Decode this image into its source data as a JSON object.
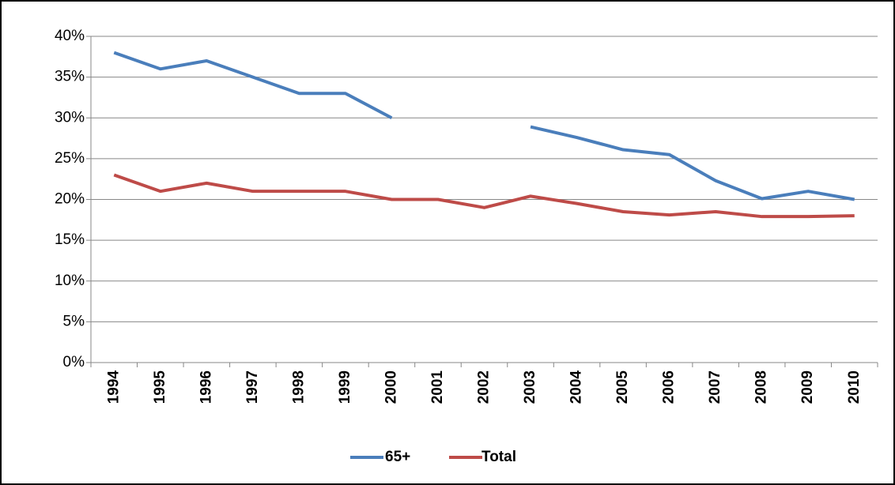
{
  "chart_data": {
    "type": "line",
    "categories": [
      "1994",
      "1995",
      "1996",
      "1997",
      "1998",
      "1999",
      "2000",
      "2001",
      "2002",
      "2003",
      "2004",
      "2005",
      "2006",
      "2007",
      "2008",
      "2009",
      "2010"
    ],
    "series": [
      {
        "name": "65+",
        "color": "#4a7ebb",
        "values": [
          38,
          36,
          37,
          35,
          33,
          33,
          30,
          null,
          null,
          28.9,
          27.6,
          26.1,
          25.5,
          22.3,
          20.1,
          21,
          20
        ]
      },
      {
        "name": "Total",
        "color": "#be4b48",
        "values": [
          23,
          21,
          22,
          21,
          21,
          21,
          20,
          20,
          19,
          20.4,
          19.5,
          18.5,
          18.1,
          18.5,
          17.9,
          17.9,
          18
        ]
      }
    ],
    "ylim": [
      0,
      40
    ],
    "yticks": [
      {
        "value": 0,
        "label": "0%"
      },
      {
        "value": 5,
        "label": "5%"
      },
      {
        "value": 10,
        "label": "10%"
      },
      {
        "value": 15,
        "label": "15%"
      },
      {
        "value": 20,
        "label": "20%"
      },
      {
        "value": 25,
        "label": "25%"
      },
      {
        "value": 30,
        "label": "30%"
      },
      {
        "value": 35,
        "label": "35%"
      },
      {
        "value": 40,
        "label": "40%"
      }
    ],
    "grid": true,
    "legend": "bottom"
  }
}
